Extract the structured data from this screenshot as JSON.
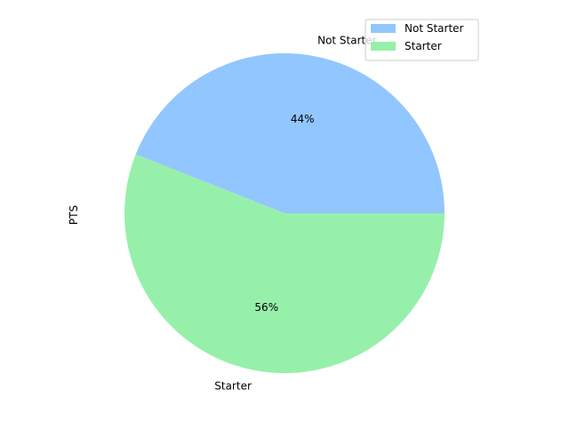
{
  "chart_data": {
    "type": "pie",
    "ylabel": "PTS",
    "slices": [
      {
        "label": "Not Starter",
        "value": 44,
        "pct_label": "44%",
        "color": "#92c6ff"
      },
      {
        "label": "Starter",
        "value": 56,
        "pct_label": "56%",
        "color": "#97f0aa"
      }
    ],
    "legend": {
      "placement": "upper right",
      "entries": [
        "Not Starter",
        "Starter"
      ]
    }
  }
}
